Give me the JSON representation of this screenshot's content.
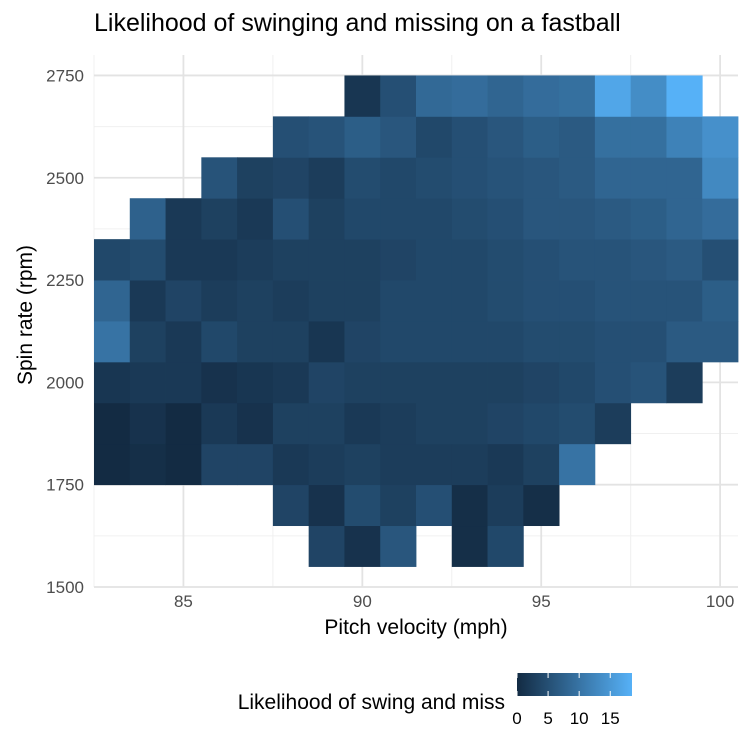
{
  "chart_data": {
    "type": "heatmap",
    "title": "Likelihood of swinging and missing on a fastball",
    "xlabel": "Pitch velocity (mph)",
    "ylabel": "Spin rate (rpm)",
    "xlim": [
      82.5,
      100.5
    ],
    "ylim": [
      1500,
      2800
    ],
    "x_ticks": [
      85,
      90,
      95,
      100
    ],
    "y_ticks": [
      1500,
      1750,
      2000,
      2250,
      2500,
      2750
    ],
    "bin_width": 1,
    "bin_height": 100,
    "grid": true,
    "legend": {
      "title": "Likelihood of swing and miss",
      "position": "bottom",
      "ticks": [
        0,
        5,
        10,
        15
      ],
      "min": 0,
      "max": 18.5,
      "low_color": "#132b43",
      "high_color": "#56b1f7"
    },
    "x_values": [
      83,
      84,
      85,
      86,
      87,
      88,
      89,
      90,
      91,
      92,
      93,
      94,
      95,
      96,
      97,
      98,
      99,
      100
    ],
    "y_values": [
      1600,
      1700,
      1800,
      1900,
      2000,
      2100,
      2200,
      2300,
      2400,
      2500,
      2600,
      2700
    ],
    "z": [
      [
        null,
        null,
        null,
        null,
        null,
        null,
        3.5,
        1,
        6,
        null,
        0.5,
        4,
        null,
        null,
        null,
        null,
        null,
        null
      ],
      [
        null,
        null,
        null,
        null,
        null,
        3.5,
        1,
        4.5,
        3,
        5,
        0.5,
        2.5,
        0.5,
        null,
        null,
        null,
        null,
        null
      ],
      [
        0,
        0.5,
        0,
        3.5,
        3.5,
        2,
        2.5,
        3,
        2.5,
        2.5,
        2.5,
        2,
        3,
        10,
        null,
        null,
        null,
        null
      ],
      [
        0,
        1,
        0,
        2,
        1,
        3,
        3,
        2,
        2.5,
        3,
        3,
        3.5,
        4,
        4.5,
        2.5,
        null,
        null,
        null
      ],
      [
        1.5,
        2,
        2,
        1,
        1.5,
        2,
        3.5,
        3,
        3,
        3,
        3,
        3,
        3.5,
        4,
        5,
        5.5,
        2.5,
        null
      ],
      [
        10,
        3,
        2,
        4,
        3,
        3,
        1.5,
        3.5,
        4,
        4,
        4,
        4,
        4.5,
        4.5,
        5,
        5,
        6.5,
        6.5
      ],
      [
        8,
        2,
        3.5,
        2.5,
        3,
        2.5,
        3,
        3,
        4,
        4,
        4,
        4.5,
        5,
        5,
        5.5,
        5.5,
        5.5,
        7
      ],
      [
        4,
        4.5,
        2,
        2,
        2.5,
        3,
        3,
        3,
        3.5,
        4,
        4,
        4.5,
        5,
        5.5,
        5.5,
        6,
        6.5,
        5
      ],
      [
        null,
        7.5,
        2,
        3,
        2,
        5,
        3,
        4,
        4,
        4,
        4.5,
        5,
        6,
        6,
        6.5,
        7,
        8,
        9
      ],
      [
        null,
        null,
        null,
        5.5,
        3,
        3.5,
        2.5,
        4.5,
        4,
        4.5,
        5,
        5.5,
        6,
        6.5,
        8,
        8,
        8,
        13
      ],
      [
        null,
        null,
        null,
        null,
        null,
        5,
        5.5,
        7,
        6,
        4,
        5,
        6,
        7,
        6.5,
        9.5,
        9.5,
        12,
        14
      ],
      [
        null,
        null,
        null,
        null,
        null,
        null,
        null,
        1.5,
        5,
        8.5,
        9,
        8,
        9,
        9.5,
        17,
        13.5,
        18.5,
        null
      ]
    ]
  }
}
